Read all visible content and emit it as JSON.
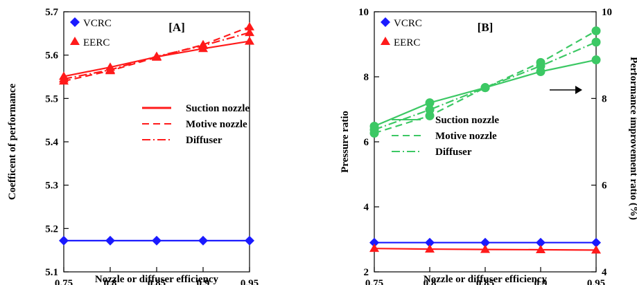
{
  "chart_data": [
    {
      "panel": "[A]",
      "type": "line",
      "xlabel": "Nozzle or diffuser efficiency",
      "ylabel": "Coefficent of performance",
      "x": [
        0.75,
        0.8,
        0.85,
        0.9,
        0.95
      ],
      "xticks": [
        "0.75",
        "0.8",
        "0.85",
        "0.9",
        "0.95"
      ],
      "xlim": [
        0.75,
        0.95
      ],
      "ylim": [
        5.1,
        5.7
      ],
      "yticks": [
        "5.1",
        "5.2",
        "5.3",
        "5.4",
        "5.5",
        "5.6",
        "5.7"
      ],
      "marker_legend": [
        {
          "name": "VCRC",
          "color": "#1a1aff",
          "marker": "diamond"
        },
        {
          "name": "EERC",
          "color": "#ff1a1a",
          "marker": "triangle"
        }
      ],
      "line_legend": [
        {
          "name": "Suction nozzle",
          "style": "solid"
        },
        {
          "name": "Motive nozzle",
          "style": "dashed"
        },
        {
          "name": "Diffuser",
          "style": "dashdot"
        }
      ],
      "series": [
        {
          "system": "VCRC",
          "color": "#1a1aff",
          "marker": "diamond",
          "style": "solid",
          "values": [
            5.172,
            5.172,
            5.172,
            5.172,
            5.172
          ]
        },
        {
          "system": "EERC",
          "case": "Suction nozzle",
          "color": "#ff1a1a",
          "marker": "triangle",
          "style": "solid",
          "values": [
            5.551,
            5.572,
            5.596,
            5.615,
            5.632
          ]
        },
        {
          "system": "EERC",
          "case": "Motive nozzle",
          "color": "#ff1a1a",
          "marker": "triangle",
          "style": "dashed",
          "values": [
            5.54,
            5.564,
            5.595,
            5.624,
            5.665
          ]
        },
        {
          "system": "EERC",
          "case": "Diffuser",
          "color": "#ff1a1a",
          "marker": "triangle",
          "style": "dashdot",
          "values": [
            5.545,
            5.566,
            5.597,
            5.622,
            5.652
          ]
        }
      ]
    },
    {
      "panel": "[B]",
      "type": "line",
      "xlabel": "Nozzle or diffuser efficiency",
      "ylabel": "Pressure ratio",
      "ylabel_right": "Performance improvement ratio (%)",
      "x": [
        0.75,
        0.8,
        0.85,
        0.9,
        0.95
      ],
      "xticks": [
        "0.75",
        "0.8",
        "0.85",
        "0.9",
        "0.95"
      ],
      "xlim": [
        0.75,
        0.95
      ],
      "ylim": [
        2,
        10
      ],
      "yticks": [
        "2",
        "4",
        "6",
        "8",
        "10"
      ],
      "ylim_right": [
        4,
        10
      ],
      "yticks_right": [
        "4",
        "6",
        "8",
        "10"
      ],
      "marker_legend": [
        {
          "name": "VCRC",
          "color": "#1a1aff",
          "marker": "diamond"
        },
        {
          "name": "EERC",
          "color": "#ff1a1a",
          "marker": "triangle"
        }
      ],
      "line_legend": [
        {
          "name": "Suction nozzle",
          "style": "solid"
        },
        {
          "name": "Motive nozzle",
          "style": "dashed"
        },
        {
          "name": "Diffuser",
          "style": "dashdot"
        }
      ],
      "line_legend_color": "#3cc864",
      "series": [
        {
          "system": "VCRC",
          "axis": "left",
          "color": "#1a1aff",
          "marker": "diamond",
          "style": "solid",
          "values": [
            2.9,
            2.9,
            2.9,
            2.9,
            2.9
          ]
        },
        {
          "system": "EERC",
          "axis": "left",
          "color": "#ff1a1a",
          "marker": "triangle",
          "style": "solid",
          "values": [
            2.72,
            2.7,
            2.69,
            2.68,
            2.67
          ]
        },
        {
          "case": "Suction nozzle",
          "axis": "right",
          "color": "#3cc864",
          "marker": "circle",
          "style": "solid",
          "values": [
            7.36,
            7.9,
            8.25,
            8.62,
            8.89
          ]
        },
        {
          "case": "Motive nozzle",
          "axis": "right",
          "color": "#3cc864",
          "marker": "circle",
          "style": "dashed",
          "values": [
            7.2,
            7.6,
            8.25,
            8.83,
            9.56
          ]
        },
        {
          "case": "Diffuser",
          "axis": "right",
          "color": "#3cc864",
          "marker": "circle",
          "style": "dashdot",
          "values": [
            7.28,
            7.74,
            8.25,
            8.75,
            9.3
          ]
        }
      ]
    }
  ]
}
